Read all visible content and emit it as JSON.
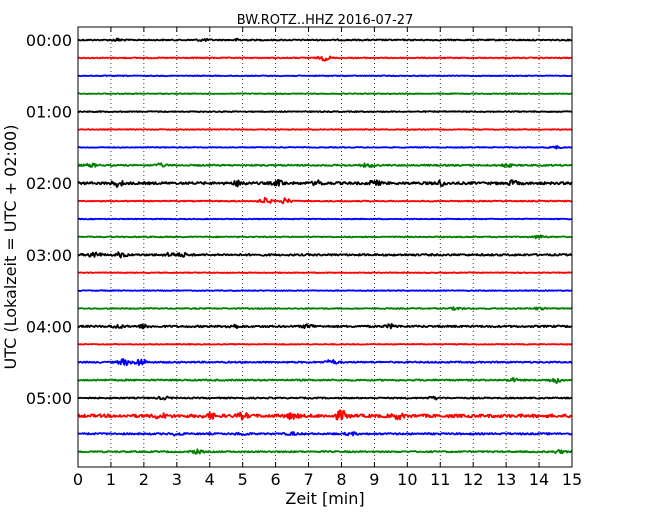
{
  "chart_data": {
    "type": "line",
    "title": "BW.ROTZ..HHZ 2016-07-27",
    "xlabel": "Zeit  [min]",
    "ylabel": "UTC (Lokalzeit = UTC + 02:00)",
    "xlim": [
      0,
      15
    ],
    "x_ticks": [
      "0",
      "1",
      "2",
      "3",
      "4",
      "5",
      "6",
      "7",
      "8",
      "9",
      "10",
      "11",
      "12",
      "13",
      "14",
      "15"
    ],
    "y_tick_labels": [
      "00:00",
      "01:00",
      "02:00",
      "03:00",
      "04:00",
      "05:00"
    ],
    "grid": "vertical dotted",
    "trace_interval_minutes": 15,
    "series": [
      {
        "start": "00:00",
        "color": "#000000",
        "events": [
          {
            "t": 1.2,
            "a": 1.2
          },
          {
            "t": 3.8,
            "a": 1.0
          },
          {
            "t": 4.9,
            "a": 1.0
          }
        ],
        "noise": 0.6
      },
      {
        "start": "00:15",
        "color": "#ff0000",
        "events": [
          {
            "t": 7.5,
            "a": 2.5
          }
        ],
        "noise": 0.5
      },
      {
        "start": "00:30",
        "color": "#0000ff",
        "events": [],
        "noise": 0.4
      },
      {
        "start": "00:45",
        "color": "#008000",
        "events": [],
        "noise": 0.4
      },
      {
        "start": "01:00",
        "color": "#000000",
        "events": [],
        "noise": 0.5
      },
      {
        "start": "01:15",
        "color": "#ff0000",
        "events": [],
        "noise": 0.4
      },
      {
        "start": "01:30",
        "color": "#0000ff",
        "events": [
          {
            "t": 14.5,
            "a": 1.2
          }
        ],
        "noise": 0.4
      },
      {
        "start": "01:45",
        "color": "#008000",
        "events": [
          {
            "t": 0.4,
            "a": 1.5
          },
          {
            "t": 2.5,
            "a": 1.5
          },
          {
            "t": 8.8,
            "a": 1.8
          },
          {
            "t": 13.0,
            "a": 1.5
          }
        ],
        "noise": 0.7
      },
      {
        "start": "02:00",
        "color": "#000000",
        "events": [
          {
            "t": 1.2,
            "a": 2.8
          },
          {
            "t": 4.9,
            "a": 2.5
          },
          {
            "t": 6.1,
            "a": 2.3
          },
          {
            "t": 7.3,
            "a": 2.0
          },
          {
            "t": 9.0,
            "a": 2.3
          },
          {
            "t": 11.0,
            "a": 2.3
          },
          {
            "t": 13.2,
            "a": 2.0
          }
        ],
        "noise": 1.2
      },
      {
        "start": "02:15",
        "color": "#ff0000",
        "events": [
          {
            "t": 5.7,
            "a": 3.0
          },
          {
            "t": 6.3,
            "a": 2.6
          }
        ],
        "noise": 0.5
      },
      {
        "start": "02:30",
        "color": "#0000ff",
        "events": [],
        "noise": 0.4
      },
      {
        "start": "02:45",
        "color": "#008000",
        "events": [
          {
            "t": 14.0,
            "a": 1.5
          }
        ],
        "noise": 0.5
      },
      {
        "start": "03:00",
        "color": "#000000",
        "events": [
          {
            "t": 0.5,
            "a": 2.8
          },
          {
            "t": 1.3,
            "a": 2.2
          },
          {
            "t": 2.8,
            "a": 1.6
          },
          {
            "t": 3.2,
            "a": 1.5
          }
        ],
        "noise": 0.9
      },
      {
        "start": "03:15",
        "color": "#ff0000",
        "events": [],
        "noise": 0.4
      },
      {
        "start": "03:30",
        "color": "#0000ff",
        "events": [],
        "noise": 0.4
      },
      {
        "start": "03:45",
        "color": "#008000",
        "events": [
          {
            "t": 11.5,
            "a": 1.3
          },
          {
            "t": 14.0,
            "a": 1.0
          }
        ],
        "noise": 0.5
      },
      {
        "start": "04:00",
        "color": "#000000",
        "events": [
          {
            "t": 1.2,
            "a": 1.6
          },
          {
            "t": 2.0,
            "a": 1.5
          },
          {
            "t": 4.7,
            "a": 1.8
          },
          {
            "t": 7.0,
            "a": 1.8
          },
          {
            "t": 9.5,
            "a": 1.6
          }
        ],
        "noise": 0.9
      },
      {
        "start": "04:15",
        "color": "#ff0000",
        "events": [],
        "noise": 0.4
      },
      {
        "start": "04:30",
        "color": "#0000ff",
        "events": [
          {
            "t": 1.4,
            "a": 3.0
          },
          {
            "t": 1.9,
            "a": 3.5
          },
          {
            "t": 7.7,
            "a": 2.2
          }
        ],
        "noise": 0.7
      },
      {
        "start": "04:45",
        "color": "#008000",
        "events": [
          {
            "t": 14.5,
            "a": 2.5
          },
          {
            "t": 13.2,
            "a": 1.5
          }
        ],
        "noise": 0.7
      },
      {
        "start": "05:00",
        "color": "#000000",
        "events": [
          {
            "t": 2.6,
            "a": 1.3
          },
          {
            "t": 10.8,
            "a": 1.2
          }
        ],
        "noise": 0.6
      },
      {
        "start": "05:15",
        "color": "#ff0000",
        "events": [
          {
            "t": 2.5,
            "a": 2.2
          },
          {
            "t": 4.0,
            "a": 2.3
          },
          {
            "t": 5.0,
            "a": 2.4
          },
          {
            "t": 6.5,
            "a": 2.5
          },
          {
            "t": 8.0,
            "a": 4.5
          },
          {
            "t": 9.7,
            "a": 2.5
          }
        ],
        "noise": 1.5
      },
      {
        "start": "05:30",
        "color": "#0000ff",
        "events": [
          {
            "t": 3.0,
            "a": 1.3
          },
          {
            "t": 5.0,
            "a": 1.2
          },
          {
            "t": 6.5,
            "a": 1.2
          },
          {
            "t": 8.3,
            "a": 1.2
          }
        ],
        "noise": 0.8
      },
      {
        "start": "05:45",
        "color": "#008000",
        "events": [
          {
            "t": 3.6,
            "a": 1.8
          },
          {
            "t": 14.6,
            "a": 1.4
          }
        ],
        "noise": 0.7
      }
    ]
  }
}
